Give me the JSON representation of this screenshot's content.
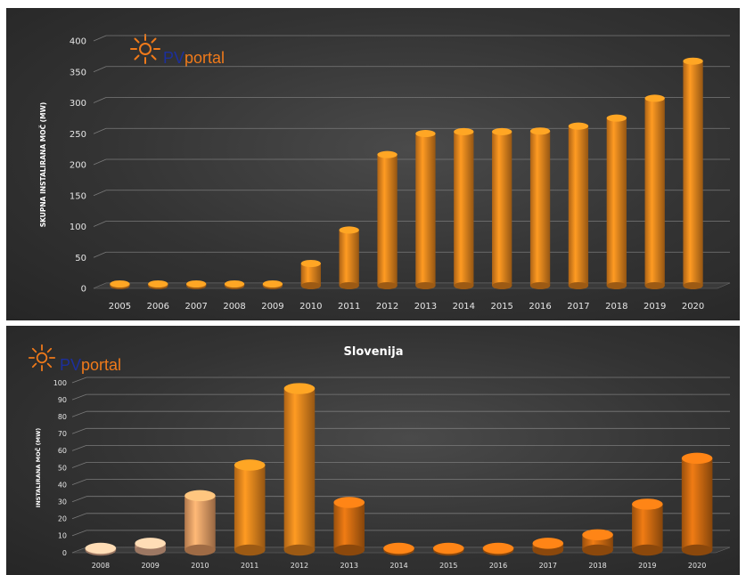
{
  "logo": {
    "pv": "PV",
    "portal": "portal",
    "icon": "sun-icon",
    "color_pv": "#1c2f9c",
    "color_portal": "#f07a1a"
  },
  "chart_data": [
    {
      "type": "bar",
      "title": "",
      "xlabel": "",
      "ylabel": "SKUPNA INSTALIRANA MOČ (MW)",
      "categories": [
        "2005",
        "2006",
        "2007",
        "2008",
        "2009",
        "2010",
        "2011",
        "2012",
        "2013",
        "2014",
        "2015",
        "2016",
        "2017",
        "2018",
        "2019",
        "2020"
      ],
      "values": [
        0.2,
        0.3,
        0.5,
        1,
        2,
        36,
        90,
        212,
        246,
        249,
        249,
        250,
        258,
        271,
        303,
        363
      ],
      "ylim": [
        0,
        400
      ],
      "yticks": [
        0,
        50,
        100,
        150,
        200,
        250,
        300,
        350,
        400
      ],
      "grid": true,
      "bar_color": "#f08a1e"
    },
    {
      "type": "bar",
      "title": "Slovenija",
      "xlabel": "",
      "ylabel": "INSTALIRANA MOČ (MW)",
      "categories": [
        "2008",
        "2009",
        "2010",
        "2011",
        "2012",
        "2013",
        "2014",
        "2015",
        "2016",
        "2017",
        "2018",
        "2019",
        "2020"
      ],
      "values": [
        0.5,
        4,
        32,
        50,
        95,
        28,
        0.4,
        0.2,
        0.3,
        4,
        9,
        27,
        54
      ],
      "ylim": [
        0,
        100
      ],
      "yticks": [
        0,
        10,
        20,
        30,
        40,
        50,
        60,
        70,
        80,
        90,
        100
      ],
      "grid": true,
      "bar_colors": [
        "#f2b898",
        "#f2b898",
        "#f4a56a",
        "#f08a1e",
        "#f08a1e",
        "#d66f12",
        "#d66f12",
        "#d66f12",
        "#d66f12",
        "#d66f12",
        "#d66f12",
        "#d66f12",
        "#d66f12"
      ]
    }
  ]
}
